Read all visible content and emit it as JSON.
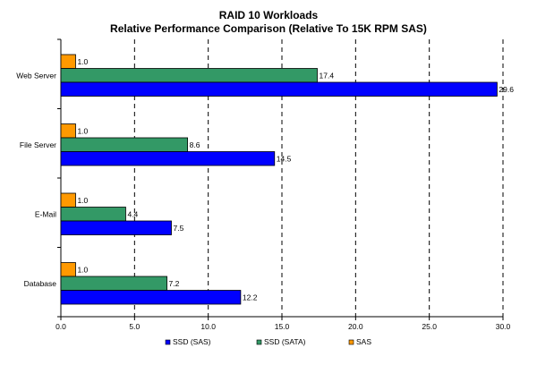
{
  "chart_data": {
    "type": "bar",
    "orientation": "horizontal",
    "title": "RAID 10 Workloads",
    "subtitle": "Relative Performance Comparison (Relative To 15K RPM SAS)",
    "categories": [
      "Web Server",
      "File Server",
      "E-Mail",
      "Database"
    ],
    "series": [
      {
        "name": "SAS",
        "color": "#ff9900",
        "values": [
          1.0,
          1.0,
          1.0,
          1.0
        ]
      },
      {
        "name": "SSD (SATA)",
        "color": "#339966",
        "values": [
          17.4,
          8.6,
          4.4,
          7.2
        ]
      },
      {
        "name": "SSD (SAS)",
        "color": "#0000ff",
        "values": [
          29.6,
          14.5,
          7.5,
          12.2
        ]
      }
    ],
    "legend_order": [
      "SSD (SAS)",
      "SSD (SATA)",
      "SAS"
    ],
    "legend_position": "bottom",
    "xlim": [
      0,
      30
    ],
    "xticks": [
      "0.0",
      "5.0",
      "10.0",
      "15.0",
      "20.0",
      "25.0",
      "30.0"
    ],
    "grid": "vertical dashed"
  }
}
